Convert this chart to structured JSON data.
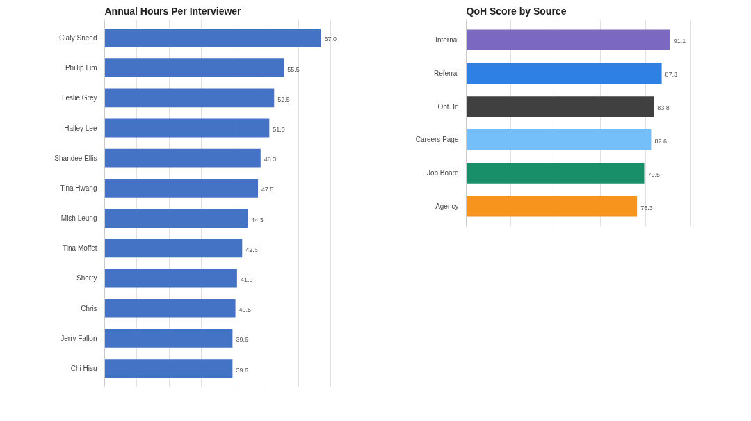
{
  "chart_data": [
    {
      "type": "bar",
      "orientation": "horizontal",
      "title": "Annual Hours Per Interviewer",
      "categories": [
        "Clafy Sneed",
        "Phillip Lim",
        "Leslie Grey",
        "Hailey Lee",
        "Shandee Ellis",
        "Tina Hwang",
        "Mish Leung",
        "Tina Moffet",
        "Sherry",
        "Chris",
        "Jerry Fallon",
        "Chi Hisu"
      ],
      "values": [
        67.0,
        55.5,
        52.5,
        51.0,
        48.3,
        47.5,
        44.3,
        42.6,
        41.0,
        40.5,
        39.6,
        39.6
      ],
      "value_labels": [
        "67.0",
        "55.5",
        "52.5",
        "51.0",
        "48.3",
        "47.5",
        "44.3",
        "42.6",
        "41.0",
        "40.5",
        "39.6",
        "39.6"
      ],
      "color": "#4472c4",
      "grid": "x",
      "tick_labels": false
    },
    {
      "type": "bar",
      "orientation": "horizontal",
      "title": "QoH Score by Source",
      "categories": [
        "Internal",
        "Referral",
        "Opt. In",
        "Careers Page",
        "Job Board",
        "Agency"
      ],
      "values": [
        91.1,
        87.3,
        83.8,
        82.6,
        79.5,
        76.3
      ],
      "data_labels": true,
      "colors": [
        "#7b68c0",
        "#2f80e4",
        "#404040",
        "#74bff9",
        "#188f68",
        "#f7941d"
      ],
      "grid": "x",
      "tick_labels": false
    }
  ]
}
